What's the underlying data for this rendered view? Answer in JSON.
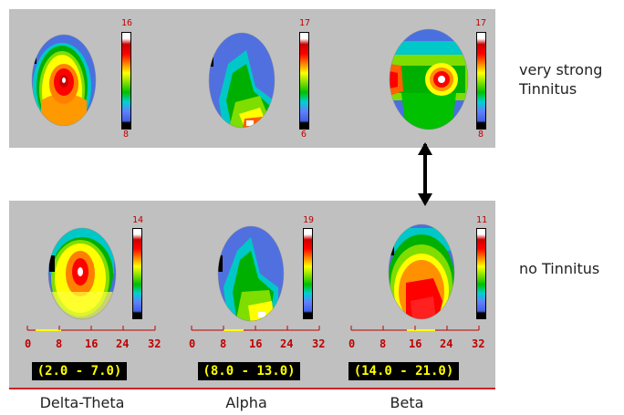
{
  "conditions": {
    "top_line1": "very strong",
    "top_line2": "Tinnitus",
    "bottom": "no Tinnitus"
  },
  "bands": [
    {
      "name": "Delta-Theta",
      "range": "(2.0 - 7.0)",
      "top_scale": {
        "max": "16",
        "min": "8"
      },
      "bottom_scale": {
        "max": "14"
      }
    },
    {
      "name": "Alpha",
      "range": "(8.0 - 13.0)",
      "top_scale": {
        "max": "17",
        "min": "6"
      },
      "bottom_scale": {
        "max": "19"
      }
    },
    {
      "name": "Beta",
      "range": "(14.0 - 21.0)",
      "top_scale": {
        "max": "17",
        "min": "8"
      },
      "bottom_scale": {
        "max": "11"
      }
    }
  ],
  "frequency_axis": {
    "ticks": [
      "0",
      "8",
      "16",
      "24",
      "32"
    ]
  },
  "colors": {
    "panel_bg": "#c0c0c0",
    "scale_text": "#c00000",
    "range_text": "#ffff00",
    "range_bg": "#000000",
    "arrow": "#000000"
  }
}
